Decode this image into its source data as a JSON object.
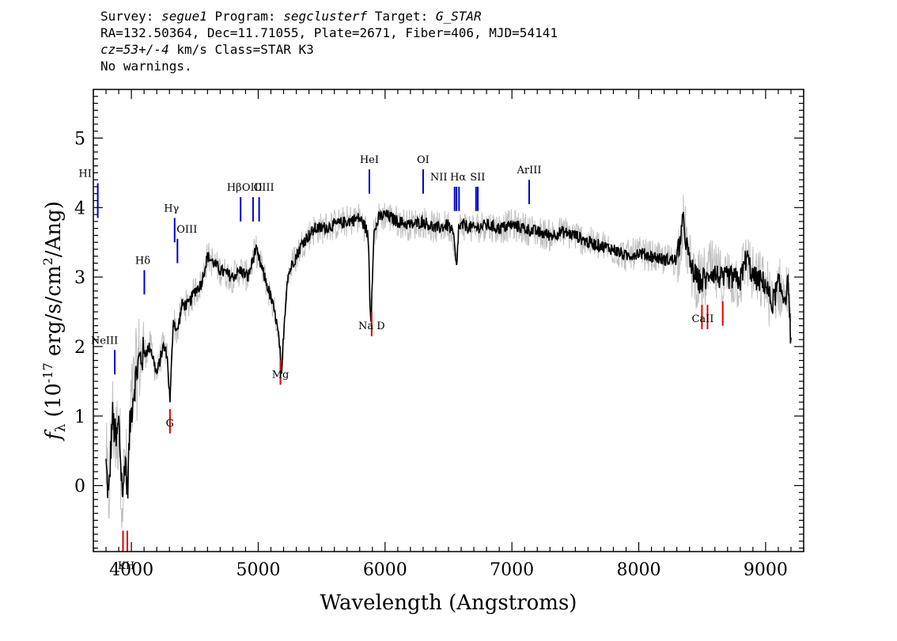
{
  "header": {
    "line1": {
      "survey_label": "Survey: ",
      "survey": "segue1",
      "program_label": " Program: ",
      "program": "segclusterf",
      "target_label": " Target: ",
      "target": "G_STAR"
    },
    "line2": "RA=132.50364, Dec=11.71055, Plate=2671, Fiber=406, MJD=54141",
    "line3": {
      "cz": "cz=53+/-4",
      "rest": " km/s Class=STAR K3"
    },
    "line4": "No warnings."
  },
  "chart_data": {
    "type": "line",
    "title": "",
    "xlabel": "Wavelength (Angstroms)",
    "ylabel": "f_λ (10^-17 erg/s/cm^2/Ang)",
    "xlim": [
      3700,
      9300
    ],
    "ylim": [
      -0.95,
      5.7
    ],
    "xticks": [
      4000,
      5000,
      6000,
      7000,
      8000,
      9000
    ],
    "yticks": [
      0,
      1,
      2,
      3,
      4,
      5
    ],
    "grid": false,
    "colors": {
      "flux": "#000000",
      "noise": "#c0c0c0",
      "emission": "#0000cc",
      "absorption": "#dd0000"
    },
    "series": [
      {
        "name": "",
        "x": [
          3800,
          3820,
          3850,
          3880,
          3900,
          3920,
          3935,
          3950,
          3968,
          3990,
          4020,
          4060,
          4100,
          4150,
          4200,
          4250,
          4280,
          4305,
          4330,
          4360,
          4400,
          4450,
          4500,
          4550,
          4600,
          4700,
          4800,
          4860,
          4920,
          4980,
          5050,
          5100,
          5140,
          5170,
          5183,
          5200,
          5230,
          5270,
          5300,
          5350,
          5400,
          5450,
          5500,
          5600,
          5700,
          5800,
          5850,
          5870,
          5880,
          5890,
          5896,
          5910,
          5950,
          6000,
          6100,
          6200,
          6300,
          6400,
          6500,
          6540,
          6563,
          6580,
          6620,
          6700,
          6800,
          6900,
          7000,
          7100,
          7200,
          7300,
          7400,
          7500,
          7600,
          7700,
          7800,
          7900,
          8000,
          8100,
          8200,
          8300,
          8350,
          8400,
          8450,
          8498,
          8510,
          8542,
          8560,
          8600,
          8662,
          8700,
          8800,
          8850,
          8900,
          9000,
          9050,
          9100,
          9150,
          9180,
          9200
        ],
        "y": [
          0.3,
          -0.2,
          1.0,
          0.6,
          0.9,
          0.2,
          -0.2,
          0.5,
          -0.1,
          0.9,
          1.4,
          1.8,
          1.9,
          2.0,
          1.6,
          2.0,
          1.9,
          1.2,
          2.4,
          2.2,
          2.6,
          2.6,
          2.8,
          2.9,
          3.3,
          3.1,
          3.0,
          3.1,
          3.0,
          3.4,
          3.0,
          2.7,
          2.4,
          2.0,
          1.5,
          2.2,
          3.0,
          3.2,
          3.3,
          3.5,
          3.6,
          3.7,
          3.7,
          3.75,
          3.8,
          3.85,
          3.7,
          3.5,
          2.7,
          2.3,
          2.8,
          3.6,
          3.85,
          3.9,
          3.8,
          3.75,
          3.8,
          3.7,
          3.75,
          3.6,
          3.1,
          3.7,
          3.75,
          3.7,
          3.75,
          3.7,
          3.75,
          3.7,
          3.65,
          3.6,
          3.65,
          3.6,
          3.5,
          3.45,
          3.4,
          3.3,
          3.35,
          3.3,
          3.25,
          3.25,
          3.8,
          3.2,
          3.0,
          2.9,
          3.0,
          2.95,
          3.1,
          3.05,
          2.95,
          3.0,
          2.95,
          3.3,
          3.0,
          2.9,
          2.6,
          2.9,
          2.7,
          2.9,
          2.0
        ]
      }
    ],
    "lines": [
      {
        "label": "HI",
        "wave": 3735,
        "type": "emission"
      },
      {
        "label": "NeIII",
        "wave": 3869,
        "type": "emission"
      },
      {
        "label": "Hδ",
        "wave": 4102,
        "type": "emission"
      },
      {
        "label": "Hγ",
        "wave": 4341,
        "type": "emission"
      },
      {
        "label": "OIII",
        "wave": 4363,
        "type": "emission"
      },
      {
        "label": "Hβ",
        "wave": 4861,
        "type": "emission"
      },
      {
        "label": "OIII",
        "wave": 4959,
        "type": "emission"
      },
      {
        "label": "OIII",
        "wave": 5007,
        "type": "emission"
      },
      {
        "label": "HeI",
        "wave": 5876,
        "type": "emission"
      },
      {
        "label": "OI",
        "wave": 6300,
        "type": "emission"
      },
      {
        "label": "NII",
        "wave": 6548,
        "type": "emission"
      },
      {
        "label": "Hα",
        "wave": 6563,
        "type": "emission"
      },
      {
        "label": "NII",
        "wave": 6583,
        "type": "emission"
      },
      {
        "label": "SII",
        "wave": 6717,
        "type": "emission"
      },
      {
        "label": "SII",
        "wave": 6731,
        "type": "emission"
      },
      {
        "label": "ArIII",
        "wave": 7136,
        "type": "emission"
      },
      {
        "label": "K",
        "wave": 3934,
        "type": "absorption"
      },
      {
        "label": "H",
        "wave": 3968,
        "type": "absorption"
      },
      {
        "label": "G",
        "wave": 4304,
        "type": "absorption"
      },
      {
        "label": "Mg",
        "wave": 5175,
        "type": "absorption"
      },
      {
        "label": "Na D",
        "wave": 5894,
        "type": "absorption"
      },
      {
        "label": "CaII",
        "wave": 8498,
        "type": "absorption"
      },
      {
        "label": "CaII",
        "wave": 8542,
        "type": "absorption"
      },
      {
        "label": "CaII",
        "wave": 8662,
        "type": "absorption"
      }
    ]
  }
}
